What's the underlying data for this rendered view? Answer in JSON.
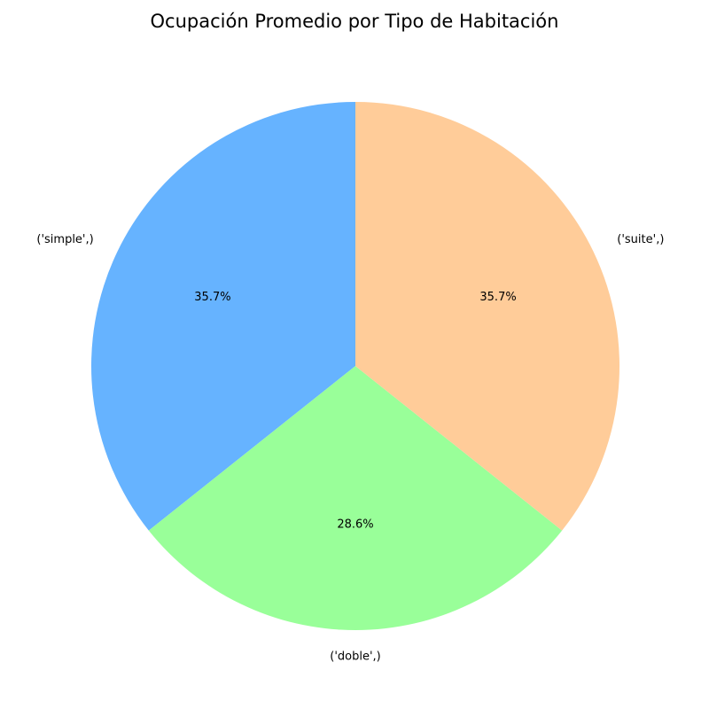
{
  "chart_data": {
    "type": "pie",
    "title": "Ocupación Promedio por Tipo de Habitación",
    "start_angle_deg": 90,
    "direction": "counterclockwise",
    "slices": [
      {
        "label": "('simple',)",
        "value": 35.7,
        "pct_label": "35.7%",
        "color": "#66b3ff"
      },
      {
        "label": "('doble',)",
        "value": 28.6,
        "pct_label": "28.6%",
        "color": "#99ff99"
      },
      {
        "label": "('suite',)",
        "value": 35.7,
        "pct_label": "35.7%",
        "color": "#ffcc99"
      }
    ]
  }
}
